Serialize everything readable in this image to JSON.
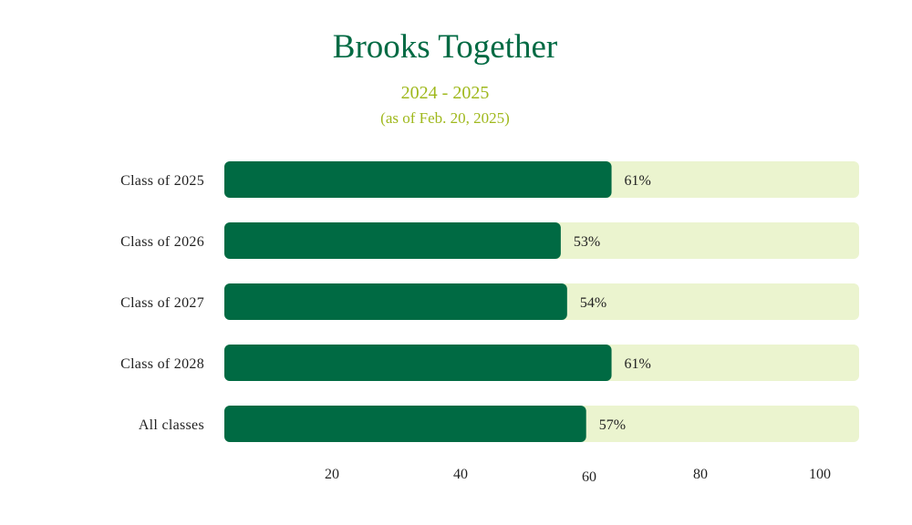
{
  "chart_data": {
    "type": "bar",
    "orientation": "horizontal",
    "title": "Brooks Together",
    "subtitle": "2024 - 2025",
    "note": "(as of Feb. 20, 2025)",
    "categories": [
      "Class of 2025",
      "Class of 2026",
      "Class of 2027",
      "Class of 2028",
      "All classes"
    ],
    "values": [
      61,
      53,
      54,
      61,
      57
    ],
    "value_labels": [
      "61%",
      "53%",
      "54%",
      "61%",
      "57%"
    ],
    "xlim": [
      0,
      100
    ],
    "xticks": [
      {
        "value": 20,
        "label": "20"
      },
      {
        "value": 40,
        "label": "40"
      },
      {
        "value": 60,
        "label": "60"
      },
      {
        "value": 80,
        "label": "80"
      },
      {
        "value": 100,
        "label": "100"
      }
    ],
    "grid": false,
    "legend": "none",
    "colors": {
      "bar": "#006a43",
      "track": "#ebf4cf",
      "title": "#006a43",
      "subtitle": "#9fb81c"
    }
  }
}
